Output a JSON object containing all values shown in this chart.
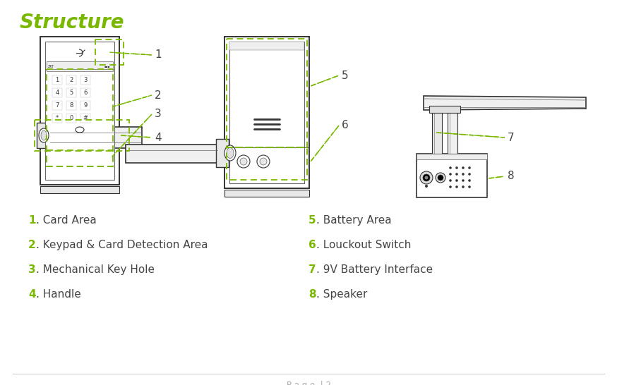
{
  "title": "Structure",
  "title_color": "#7ab800",
  "title_fontsize": 20,
  "background_color": "#ffffff",
  "page_footer": "P a g e  | 2",
  "footer_color": "#aaaaaa",
  "items_left": [
    {
      "num": "1",
      "text": ". Card Area"
    },
    {
      "num": "2",
      "text": ". Keypad & Card Detection Area"
    },
    {
      "num": "3",
      "text": ". Mechanical Key Hole"
    },
    {
      "num": "4",
      "text": ". Handle"
    }
  ],
  "items_right": [
    {
      "num": "5",
      "text": ". Battery Area"
    },
    {
      "num": "6",
      "text": ". Louckout Switch"
    },
    {
      "num": "7",
      "text": ". 9V Battery Interface"
    },
    {
      "num": "8",
      "text": ". Speaker"
    }
  ],
  "green_color": "#7ab800",
  "gray_color": "#aaaaaa",
  "dark_color": "#444444",
  "line_color": "#666666",
  "line_color_dark": "#333333"
}
